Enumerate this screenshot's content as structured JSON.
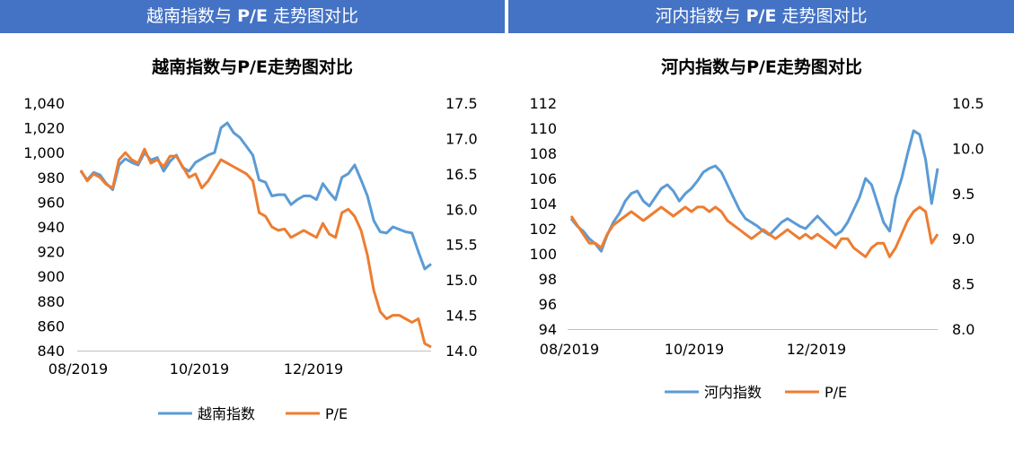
{
  "banners": {
    "left": "越南指数与 P/E 走势图对比",
    "right": "河内指数与 P/E 走势图对比"
  },
  "colors": {
    "banner": "#4472c4",
    "index_series": "#5b9bd5",
    "pe_series": "#ed7d31"
  },
  "chart_data": [
    {
      "type": "line",
      "title": "越南指数与P/E走势图对比",
      "x_tick_labels": [
        "08/2019",
        "10/2019",
        "12/2019"
      ],
      "y_left": {
        "ticks": [
          "840",
          "860",
          "880",
          "900",
          "920",
          "940",
          "960",
          "980",
          "1,000",
          "1,020",
          "1,040"
        ],
        "lim": [
          840,
          1040
        ]
      },
      "y_right": {
        "ticks": [
          "14.0",
          "14.5",
          "15.0",
          "15.5",
          "16.0",
          "16.5",
          "17.0",
          "17.5"
        ],
        "lim": [
          14.0,
          17.5
        ]
      },
      "legend_position": "bottom",
      "series": [
        {
          "name": "越南指数",
          "axis": "left",
          "values": [
            985,
            978,
            984,
            982,
            975,
            970,
            990,
            995,
            992,
            990,
            1000,
            994,
            996,
            985,
            993,
            998,
            988,
            985,
            992,
            995,
            998,
            1000,
            1020,
            1024,
            1016,
            1012,
            1005,
            998,
            978,
            976,
            965,
            966,
            966,
            958,
            962,
            965,
            965,
            962,
            975,
            968,
            962,
            980,
            983,
            990,
            978,
            965,
            945,
            936,
            935,
            940,
            938,
            936,
            935,
            920,
            906,
            910
          ]
        },
        {
          "name": "P/E",
          "axis": "right",
          "values": [
            16.55,
            16.4,
            16.5,
            16.45,
            16.35,
            16.3,
            16.7,
            16.8,
            16.7,
            16.65,
            16.85,
            16.65,
            16.7,
            16.6,
            16.75,
            16.75,
            16.6,
            16.45,
            16.5,
            16.3,
            16.4,
            16.55,
            16.7,
            16.65,
            16.6,
            16.55,
            16.5,
            16.4,
            15.95,
            15.9,
            15.75,
            15.7,
            15.72,
            15.6,
            15.65,
            15.7,
            15.65,
            15.6,
            15.8,
            15.65,
            15.6,
            15.95,
            16.0,
            15.9,
            15.7,
            15.35,
            14.85,
            14.55,
            14.45,
            14.5,
            14.5,
            14.45,
            14.4,
            14.45,
            14.1,
            14.05
          ]
        }
      ]
    },
    {
      "type": "line",
      "title": "河内指数与P/E走势图对比",
      "x_tick_labels": [
        "08/2019",
        "10/2019",
        "12/2019"
      ],
      "y_left": {
        "ticks": [
          "94",
          "96",
          "98",
          "100",
          "102",
          "104",
          "106",
          "108",
          "110",
          "112"
        ],
        "lim": [
          94,
          112
        ]
      },
      "y_right": {
        "ticks": [
          "8.0",
          "8.5",
          "9.0",
          "9.5",
          "10.0",
          "10.5"
        ],
        "lim": [
          8.0,
          10.5
        ]
      },
      "legend_position": "bottom",
      "series": [
        {
          "name": "河内指数",
          "axis": "left",
          "values": [
            102.8,
            102.2,
            101.8,
            101.2,
            100.8,
            100.2,
            101.5,
            102.5,
            103.2,
            104.2,
            104.8,
            105.0,
            104.2,
            103.8,
            104.5,
            105.2,
            105.5,
            105.0,
            104.2,
            104.8,
            105.2,
            105.8,
            106.5,
            106.8,
            107.0,
            106.5,
            105.5,
            104.5,
            103.5,
            102.8,
            102.5,
            102.2,
            101.8,
            101.5,
            102.0,
            102.5,
            102.8,
            102.5,
            102.2,
            102.0,
            102.5,
            103.0,
            102.5,
            102.0,
            101.5,
            101.8,
            102.5,
            103.5,
            104.5,
            106.0,
            105.5,
            104.0,
            102.5,
            101.8,
            104.5,
            106.0,
            108.0,
            109.8,
            109.5,
            107.5,
            104.0,
            106.8
          ]
        },
        {
          "name": "P/E",
          "axis": "right",
          "values": [
            9.25,
            9.15,
            9.05,
            8.95,
            8.95,
            8.9,
            9.05,
            9.15,
            9.2,
            9.25,
            9.3,
            9.25,
            9.2,
            9.25,
            9.3,
            9.35,
            9.3,
            9.25,
            9.3,
            9.35,
            9.3,
            9.35,
            9.35,
            9.3,
            9.35,
            9.3,
            9.2,
            9.15,
            9.1,
            9.05,
            9.0,
            9.05,
            9.1,
            9.05,
            9.0,
            9.05,
            9.1,
            9.05,
            9.0,
            9.05,
            9.0,
            9.05,
            9.0,
            8.95,
            8.9,
            9.0,
            9.0,
            8.9,
            8.85,
            8.8,
            8.9,
            8.95,
            8.95,
            8.8,
            8.9,
            9.05,
            9.2,
            9.3,
            9.35,
            9.3,
            8.95,
            9.05
          ]
        }
      ]
    }
  ]
}
